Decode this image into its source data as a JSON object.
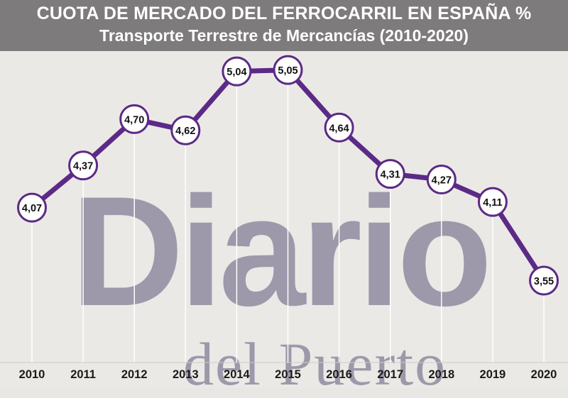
{
  "header": {
    "title": "CUOTA DE MERCADO DEL FERROCARRIL EN ESPAÑA %",
    "subtitle": "Transporte Terrestre de Mercancías (2010-2020)"
  },
  "watermark": {
    "main": "Diario",
    "sub": "del Puerto"
  },
  "colors": {
    "header_bg": "#7d7b7b",
    "line": "#5b2a86",
    "marker_fill": "#ffffff",
    "gridline": "#ffffff",
    "axis_text": "#1a1a1a"
  },
  "chart_data": {
    "type": "line",
    "title": "CUOTA DE MERCADO DEL FERROCARRIL EN ESPAÑA %",
    "subtitle": "Transporte Terrestre de Mercancías (2010-2020)",
    "xlabel": "",
    "ylabel": "",
    "categories": [
      "2010",
      "2011",
      "2012",
      "2013",
      "2014",
      "2015",
      "2016",
      "2017",
      "2018",
      "2019",
      "2020"
    ],
    "values": [
      4.07,
      4.37,
      4.7,
      4.62,
      5.04,
      5.05,
      4.64,
      4.31,
      4.27,
      4.11,
      3.55
    ],
    "data_labels": [
      "4,07",
      "4,37",
      "4,70",
      "4,62",
      "5,04",
      "5,05",
      "4,64",
      "4,31",
      "4,27",
      "4,11",
      "3,55"
    ],
    "ylim": [
      3.3,
      5.3
    ],
    "grid": "vertical",
    "legend": "none"
  }
}
